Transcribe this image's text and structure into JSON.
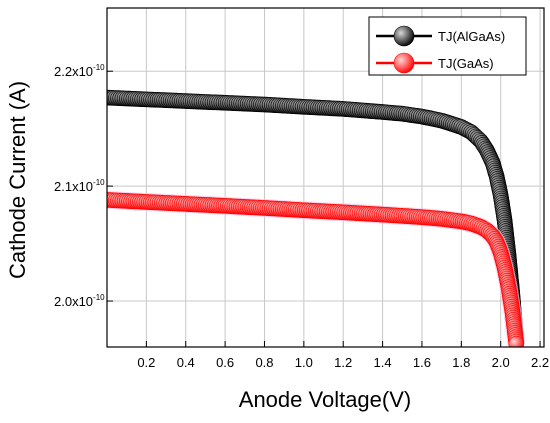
{
  "chart_data": {
    "type": "scatter",
    "title": "",
    "xlabel": "Anode Voltage(V)",
    "ylabel": "Cathode Current (A)",
    "xlim": [
      0.0,
      2.22
    ],
    "ylim": [
      1.96e-10,
      2.255e-10
    ],
    "grid": true,
    "legend_position": "top-right",
    "x_ticks": [
      {
        "value": 0.2,
        "label": "0.2"
      },
      {
        "value": 0.4,
        "label": "0.4"
      },
      {
        "value": 0.6,
        "label": "0.6"
      },
      {
        "value": 0.8,
        "label": "0.8"
      },
      {
        "value": 1.0,
        "label": "1.0"
      },
      {
        "value": 1.2,
        "label": "1.2"
      },
      {
        "value": 1.4,
        "label": "1.4"
      },
      {
        "value": 1.6,
        "label": "1.6"
      },
      {
        "value": 1.8,
        "label": "1.8"
      },
      {
        "value": 2.0,
        "label": "2.0"
      },
      {
        "value": 2.2,
        "label": "2.2"
      }
    ],
    "y_ticks": [
      {
        "value": 2e-10,
        "mantissa": "2.0x10",
        "exponent": "-10"
      },
      {
        "value": 2.1e-10,
        "mantissa": "2.1x10",
        "exponent": "-10"
      },
      {
        "value": 2.2e-10,
        "mantissa": "2.2x10",
        "exponent": "-10"
      }
    ],
    "series": [
      {
        "name": "TJ(AlGaAs)",
        "color": "#000000",
        "highlight": "#d8d8d8",
        "x": [
          0.0,
          0.2,
          0.4,
          0.6,
          0.8,
          1.0,
          1.2,
          1.4,
          1.5,
          1.6,
          1.7,
          1.8,
          1.85,
          1.9,
          1.93,
          1.96,
          1.98,
          2.0,
          2.02,
          2.04,
          2.06,
          2.08
        ],
        "y": [
          2.177e-10,
          2.1755e-10,
          2.174e-10,
          2.1725e-10,
          2.171e-10,
          2.169e-10,
          2.1672e-10,
          2.1645e-10,
          2.163e-10,
          2.1605e-10,
          2.157e-10,
          2.1515e-10,
          2.147e-10,
          2.139e-10,
          2.131e-10,
          2.12e-10,
          2.108e-10,
          2.092e-10,
          2.07e-10,
          2.04e-10,
          2.005e-10,
          1.963e-10
        ]
      },
      {
        "name": "TJ(GaAs)",
        "color": "#ff0000",
        "highlight": "#ffd6d6",
        "x": [
          0.0,
          0.2,
          0.4,
          0.6,
          0.8,
          1.0,
          1.2,
          1.4,
          1.6,
          1.7,
          1.8,
          1.85,
          1.9,
          1.93,
          1.96,
          1.98,
          2.0,
          2.02,
          2.04,
          2.06,
          2.08
        ],
        "y": [
          2.088e-10,
          2.0862e-10,
          2.0845e-10,
          2.0828e-10,
          2.081e-10,
          2.079e-10,
          2.0772e-10,
          2.0752e-10,
          2.073e-10,
          2.0715e-10,
          2.0693e-10,
          2.0675e-10,
          2.0645e-10,
          2.0615e-10,
          2.0565e-10,
          2.051e-10,
          2.042e-10,
          2.029e-10,
          2.012e-10,
          1.99e-10,
          1.962e-10
        ]
      }
    ]
  }
}
